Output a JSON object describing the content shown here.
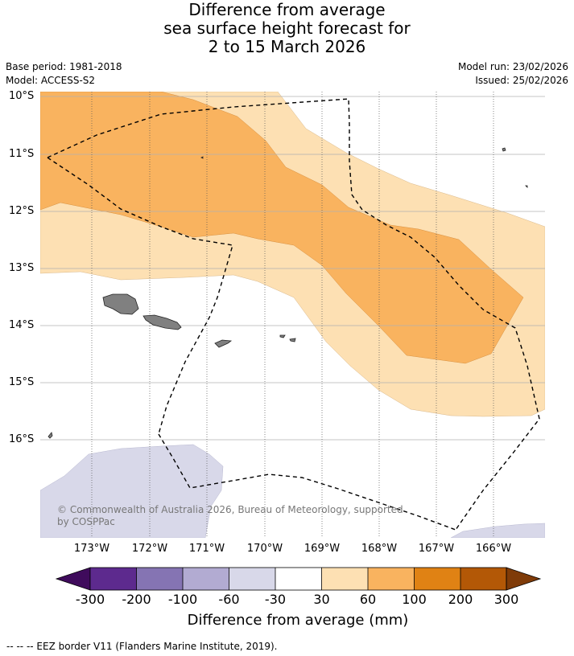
{
  "title": {
    "line1": "Difference from average",
    "line2": "sea surface height forecast for",
    "line3": "2 to 15 March 2026"
  },
  "meta": {
    "base_period": "Base period: 1981-2018",
    "model": "Model: ACCESS-S2",
    "model_run": "Model run: 23/02/2026",
    "issued": "Issued: 25/02/2026"
  },
  "map": {
    "lat_labels": [
      "10°S",
      "11°S",
      "12°S",
      "13°S",
      "14°S",
      "15°S",
      "16°S"
    ],
    "lon_labels": [
      "173°W",
      "172°W",
      "171°W",
      "170°W",
      "169°W",
      "168°W",
      "167°W",
      "166°W"
    ],
    "copyright": "© Commonwealth of Australia 2026, Bureau of Meteorology, supported by COSPPac",
    "colors": {
      "land": "#808080",
      "class_30_60": "#fde0b3",
      "class_60_100": "#f9b35f",
      "class_neg60_neg30": "#d8d8e9"
    }
  },
  "colorbar": {
    "title": "Difference from average (mm)",
    "labels": [
      "-300",
      "-200",
      "-100",
      "-60",
      "-30",
      "30",
      "60",
      "100",
      "200",
      "300"
    ],
    "colors": [
      "#3f0b5c",
      "#5d2a8e",
      "#8574b3",
      "#b2abd2",
      "#d8d8e9",
      "#ffffff",
      "#fde0b3",
      "#f9b35f",
      "#e08214",
      "#b35806",
      "#7f3b08"
    ]
  },
  "footer": "--  --  -- EEZ border V11 (Flanders Marine Institute, 2019)."
}
